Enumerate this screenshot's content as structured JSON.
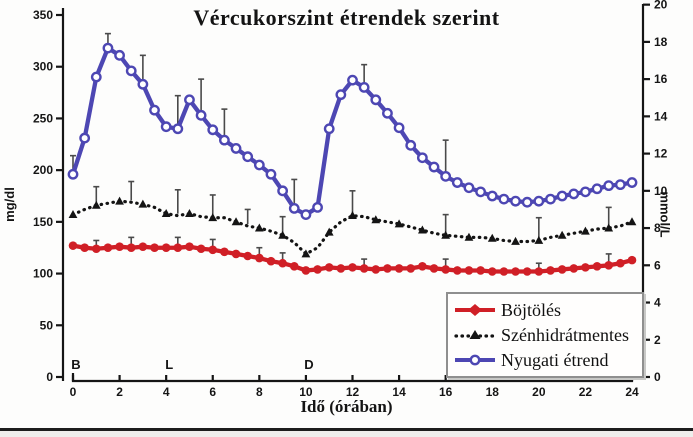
{
  "chart_data": {
    "type": "line",
    "title": "Vércukorszint étrendek szerint",
    "xlabel": "Idő (órában)",
    "ylabel_left": "mg/dl",
    "ylabel_right": "mmol/L",
    "x_range": [
      0,
      24
    ],
    "x_ticks": [
      0,
      2,
      4,
      6,
      8,
      10,
      12,
      14,
      16,
      18,
      20,
      22,
      24
    ],
    "y_left_range": [
      0,
      350
    ],
    "y_left_ticks": [
      0,
      50,
      100,
      150,
      200,
      250,
      300,
      350
    ],
    "y_right_range": [
      0,
      20
    ],
    "y_right_ticks": [
      0,
      2,
      4,
      6,
      8,
      10,
      12,
      14,
      16,
      18,
      20
    ],
    "grid": false,
    "legend_position": "bottom-right",
    "meal_markers": [
      {
        "label": "B",
        "x": 0
      },
      {
        "label": "L",
        "x": 4
      },
      {
        "label": "D",
        "x": 10
      }
    ],
    "x": [
      0,
      0.5,
      1,
      1.5,
      2,
      2.5,
      3,
      3.5,
      4,
      4.5,
      5,
      5.5,
      6,
      6.5,
      7,
      7.5,
      8,
      8.5,
      9,
      9.5,
      10,
      10.5,
      11,
      11.5,
      12,
      12.5,
      13,
      13.5,
      14,
      14.5,
      15,
      15.5,
      16,
      16.5,
      17,
      17.5,
      18,
      18.5,
      19,
      19.5,
      20,
      20.5,
      21,
      21.5,
      22,
      22.5,
      23,
      23.5,
      24
    ],
    "series": [
      {
        "name": "Böjtölés",
        "color": "#d01f26",
        "marker": "filled-circle",
        "line": "solid",
        "marker_every": 1,
        "values": [
          127,
          125,
          124,
          125,
          126,
          125,
          126,
          125,
          125,
          125,
          126,
          124,
          123,
          121,
          119,
          117,
          115,
          112,
          110,
          107,
          103,
          104,
          106,
          105,
          106,
          105,
          104,
          105,
          105,
          105,
          107,
          105,
          104,
          103,
          103,
          103,
          102,
          102,
          102,
          102,
          102,
          103,
          104,
          105,
          106,
          107,
          108,
          110,
          113
        ],
        "error_bars": [
          {
            "x": 1,
            "up": 8
          },
          {
            "x": 2.5,
            "up": 10
          },
          {
            "x": 4.5,
            "up": 10
          },
          {
            "x": 6,
            "up": 10
          },
          {
            "x": 8,
            "up": 10
          },
          {
            "x": 9,
            "up": 10
          },
          {
            "x": 12.5,
            "up": 9
          },
          {
            "x": 16,
            "up": 10
          },
          {
            "x": 20,
            "up": 8
          },
          {
            "x": 23,
            "up": 11
          }
        ]
      },
      {
        "name": "Szénhidrátmentes",
        "color": "#141414",
        "marker": "filled-triangle",
        "line": "dotted",
        "marker_every": 2,
        "values": [
          157,
          162,
          166,
          168,
          170,
          169,
          167,
          164,
          158,
          156,
          158,
          155,
          154,
          154,
          150,
          146,
          144,
          141,
          137,
          130,
          119,
          125,
          140,
          150,
          156,
          155,
          152,
          150,
          148,
          145,
          142,
          139,
          137,
          136,
          135,
          135,
          134,
          132,
          131,
          131,
          132,
          135,
          137,
          139,
          141,
          143,
          144,
          146,
          150
        ],
        "error_bars": [
          {
            "x": 1,
            "up": 18
          },
          {
            "x": 2.5,
            "up": 20
          },
          {
            "x": 4.5,
            "up": 25
          },
          {
            "x": 6,
            "up": 22
          },
          {
            "x": 7.5,
            "up": 16
          },
          {
            "x": 9,
            "up": 18
          },
          {
            "x": 12,
            "up": 24
          },
          {
            "x": 16,
            "up": 20
          },
          {
            "x": 20,
            "up": 22
          },
          {
            "x": 23,
            "up": 20
          }
        ]
      },
      {
        "name": "Nyugati étrend",
        "color": "#4d47b3",
        "marker": "open-circle",
        "line": "solid",
        "marker_every": 1,
        "values": [
          196,
          231,
          290,
          318,
          311,
          296,
          283,
          258,
          242,
          240,
          268,
          253,
          239,
          229,
          221,
          213,
          205,
          196,
          180,
          163,
          157,
          164,
          240,
          273,
          287,
          280,
          268,
          255,
          241,
          224,
          212,
          203,
          194,
          188,
          183,
          179,
          175,
          172,
          170,
          169,
          170,
          172,
          175,
          177,
          179,
          182,
          185,
          186,
          188
        ],
        "error_bars": [
          {
            "x": 0,
            "up": 18
          },
          {
            "x": 1.5,
            "up": 14
          },
          {
            "x": 3,
            "up": 28
          },
          {
            "x": 4.5,
            "up": 32
          },
          {
            "x": 5.5,
            "up": 35
          },
          {
            "x": 6.5,
            "up": 30
          },
          {
            "x": 9.5,
            "up": 28
          },
          {
            "x": 12.5,
            "up": 22
          },
          {
            "x": 16,
            "up": 35
          }
        ]
      }
    ]
  }
}
